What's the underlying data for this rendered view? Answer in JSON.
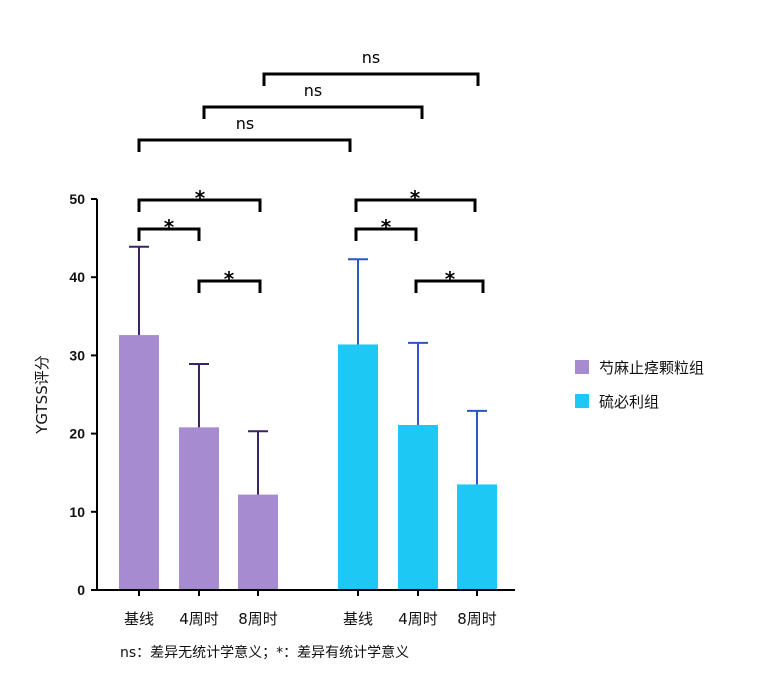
{
  "chart_data": {
    "type": "bar",
    "ylabel": "YGTSS评分",
    "ylim": [
      0,
      50
    ],
    "yticks": [
      0,
      10,
      20,
      30,
      40,
      50
    ],
    "categories": [
      "基线",
      "4周时",
      "8周时"
    ],
    "series": [
      {
        "name": "芍麻止痉颗粒组",
        "color": "#a78bd1",
        "error_color": "#3b2466",
        "values": [
          32.6,
          20.8,
          12.2
        ],
        "errors": [
          11.3,
          8.1,
          8.1
        ]
      },
      {
        "name": "硫必利组",
        "color": "#1ec8f5",
        "error_color": "#2a57c8",
        "values": [
          31.4,
          21.1,
          13.5
        ],
        "errors": [
          10.9,
          10.5,
          9.4
        ]
      }
    ],
    "significance": [
      {
        "label": "*",
        "series": 0,
        "from": 0,
        "to": 1
      },
      {
        "label": "*",
        "series": 0,
        "from": 0,
        "to": 2
      },
      {
        "label": "*",
        "series": 0,
        "from": 1,
        "to": 2
      },
      {
        "label": "*",
        "series": 1,
        "from": 0,
        "to": 1
      },
      {
        "label": "*",
        "series": 1,
        "from": 0,
        "to": 2
      },
      {
        "label": "*",
        "series": 1,
        "from": 1,
        "to": 2
      },
      {
        "label": "ns",
        "between": "baseline"
      },
      {
        "label": "ns",
        "between": "week4"
      },
      {
        "label": "ns",
        "between": "week8"
      }
    ],
    "footnote": "ns：差异无统计学意义；*：差异有统计学意义"
  }
}
